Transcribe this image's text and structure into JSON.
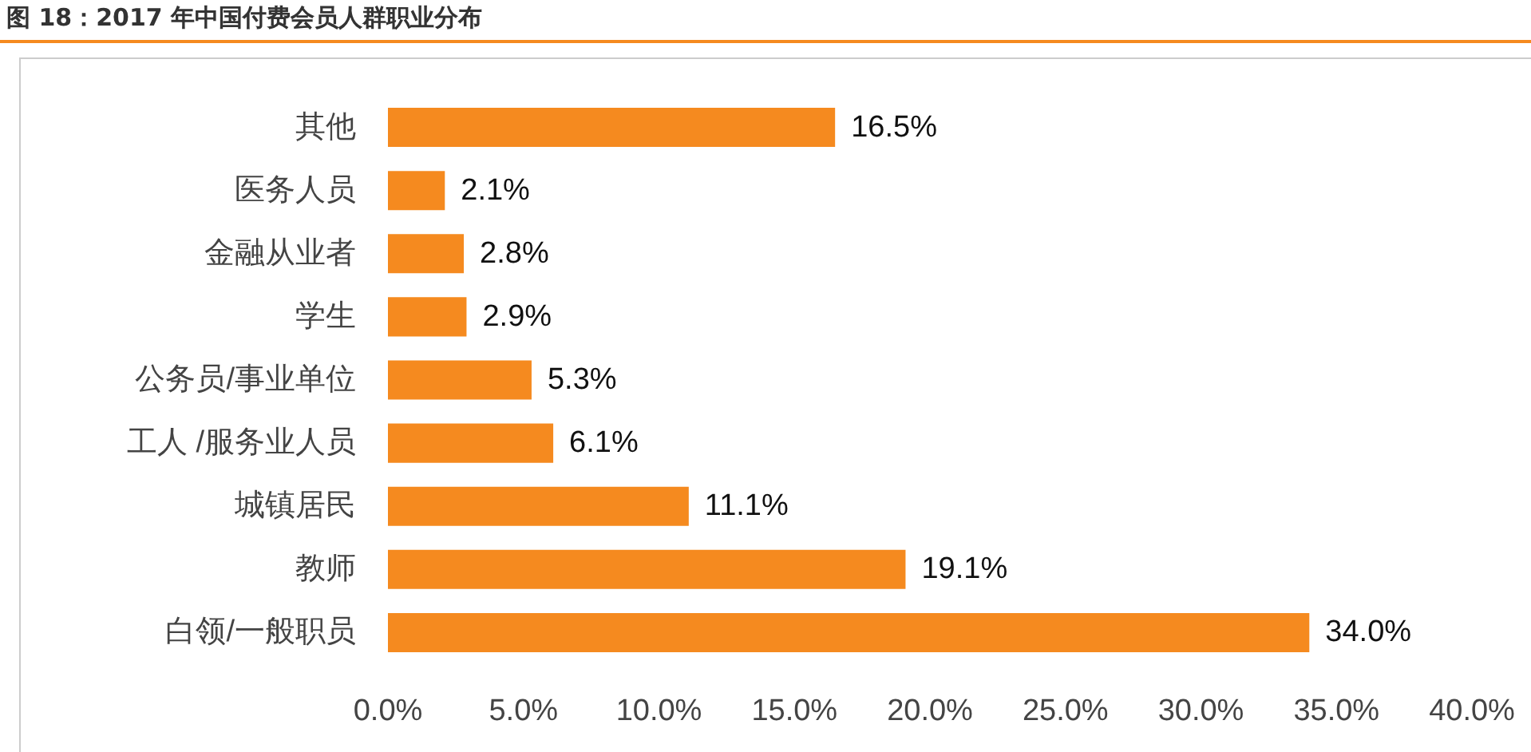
{
  "chart_data": {
    "type": "bar",
    "orientation": "horizontal",
    "title": "图 18：2017 年中国付费会员人群职业分布",
    "categories": [
      "其他",
      "医务人员",
      "金融从业者",
      "学生",
      "公务员/事业单位",
      "工人 /服务业人员",
      "城镇居民",
      "教师",
      "白领/一般职员"
    ],
    "values": [
      16.5,
      2.1,
      2.8,
      2.9,
      5.3,
      6.1,
      11.1,
      19.1,
      34.0
    ],
    "value_labels": [
      "16.5%",
      "2.1%",
      "2.8%",
      "2.9%",
      "5.3%",
      "6.1%",
      "11.1%",
      "19.1%",
      "34.0%"
    ],
    "color": "#f58a1f",
    "xlim": [
      0,
      40
    ],
    "xticks": [
      {
        "value": 0,
        "label": "0.0%"
      },
      {
        "value": 5,
        "label": "5.0%"
      },
      {
        "value": 10,
        "label": "10.0%"
      },
      {
        "value": 15,
        "label": "15.0%"
      },
      {
        "value": 20,
        "label": "20.0%"
      },
      {
        "value": 25,
        "label": "25.0%"
      },
      {
        "value": 30,
        "label": "30.0%"
      },
      {
        "value": 35,
        "label": "35.0%"
      },
      {
        "value": 40,
        "label": "40.0%"
      }
    ],
    "grid": false
  }
}
